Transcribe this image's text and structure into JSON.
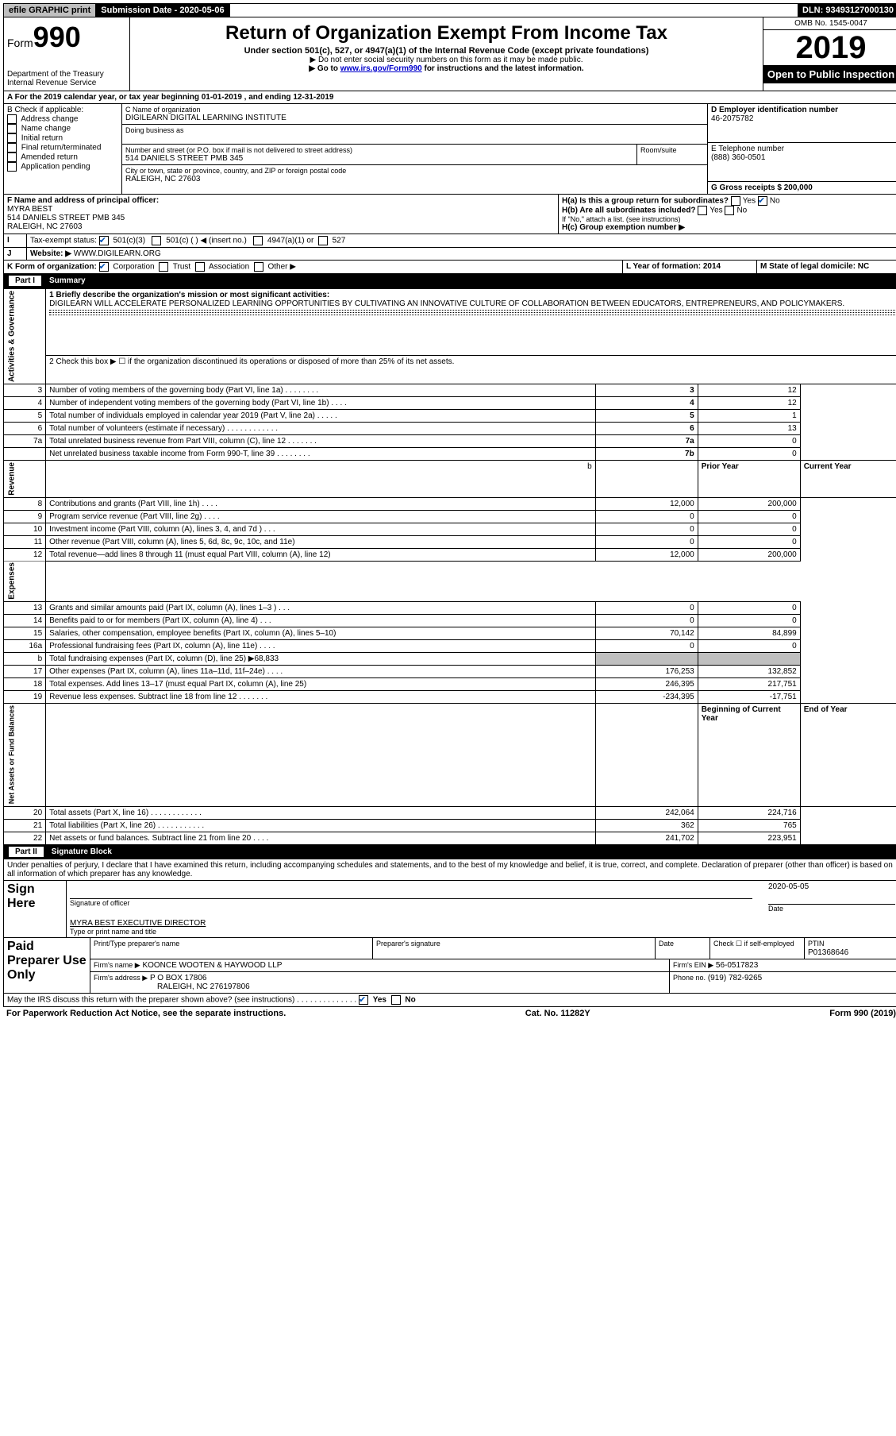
{
  "topbar": {
    "efile": "efile GRAPHIC print",
    "submission_label": "Submission Date - 2020-05-06",
    "dln_label": "DLN: 93493127000130"
  },
  "header": {
    "form_prefix": "Form",
    "form_number": "990",
    "dept": "Department of the Treasury",
    "irs": "Internal Revenue Service",
    "title": "Return of Organization Exempt From Income Tax",
    "subtitle": "Under section 501(c), 527, or 4947(a)(1) of the Internal Revenue Code (except private foundations)",
    "note1": "▶ Do not enter social security numbers on this form as it may be made public.",
    "note2_prefix": "▶ Go to ",
    "note2_link": "www.irs.gov/Form990",
    "note2_suffix": " for instructions and the latest information.",
    "omb": "OMB No. 1545-0047",
    "year": "2019",
    "open_pub": "Open to Public Inspection"
  },
  "period": {
    "line_a": "A For the 2019 calendar year, or tax year beginning 01-01-2019    , and ending 12-31-2019"
  },
  "boxB": {
    "label": "B Check if applicable:",
    "opts": [
      "Address change",
      "Name change",
      "Initial return",
      "Final return/terminated",
      "Amended return",
      "Application pending"
    ]
  },
  "boxC": {
    "name_label": "C Name of organization",
    "name": "DIGILEARN DIGITAL LEARNING INSTITUTE",
    "dba_label": "Doing business as",
    "street_label": "Number and street (or P.O. box if mail is not delivered to street address)",
    "room_label": "Room/suite",
    "street": "514 DANIELS STREET PMB 345",
    "city_label": "City or town, state or province, country, and ZIP or foreign postal code",
    "city": "RALEIGH, NC  27603"
  },
  "boxD": {
    "label": "D Employer identification number",
    "value": "46-2075782"
  },
  "boxE": {
    "label": "E Telephone number",
    "value": "(888) 360-0501"
  },
  "boxG": {
    "label": "G Gross receipts $ 200,000"
  },
  "boxF": {
    "label": "F  Name and address of principal officer:",
    "name": "MYRA BEST",
    "addr1": "514 DANIELS STREET PMB 345",
    "addr2": "RALEIGH, NC  27603"
  },
  "boxH": {
    "ha": "H(a)  Is this a group return for subordinates?",
    "hb": "H(b)  Are all subordinates included?",
    "hb_note": "If \"No,\" attach a list. (see instructions)",
    "hc": "H(c)  Group exemption number ▶",
    "yes": "Yes",
    "no": "No"
  },
  "taxexempt": {
    "label": "Tax-exempt status:",
    "c3": "501(c)(3)",
    "c": "501(c) (  ) ◀ (insert no.)",
    "a1": "4947(a)(1) or",
    "s527": "527"
  },
  "boxJ": {
    "label": "J",
    "text": "Website: ▶",
    "value": "WWW.DIGILEARN.ORG"
  },
  "boxK": {
    "label": "K Form of organization:",
    "opts": [
      "Corporation",
      "Trust",
      "Association",
      "Other ▶"
    ]
  },
  "boxL": {
    "label": "L Year of formation: 2014"
  },
  "boxM": {
    "label": "M State of legal domicile: NC"
  },
  "part1": {
    "title": "Summary",
    "part": "Part I",
    "q1": "1  Briefly describe the organization's mission or most significant activities:",
    "mission": "DIGILEARN WILL ACCELERATE PERSONALIZED LEARNING OPPORTUNITIES BY CULTIVATING AN INNOVATIVE CULTURE OF COLLABORATION BETWEEN EDUCATORS, ENTREPRENEURS, AND POLICYMAKERS.",
    "q2": "2   Check this box ▶ ☐  if the organization discontinued its operations or disposed of more than 25% of its net assets.",
    "gov_rows": [
      {
        "n": "3",
        "t": "Number of voting members of the governing body (Part VI, line 1a)   .   .   .   .   .   .   .   .",
        "rn": "3",
        "v": "12"
      },
      {
        "n": "4",
        "t": "Number of independent voting members of the governing body (Part VI, line 1b)   .   .   .   .",
        "rn": "4",
        "v": "12"
      },
      {
        "n": "5",
        "t": "Total number of individuals employed in calendar year 2019 (Part V, line 2a)   .   .   .   .   .",
        "rn": "5",
        "v": "1"
      },
      {
        "n": "6",
        "t": "Total number of volunteers (estimate if necessary)    .   .   .   .   .   .   .   .   .   .   .   .",
        "rn": "6",
        "v": "13"
      },
      {
        "n": "7a",
        "t": "Total unrelated business revenue from Part VIII, column (C), line 12   .   .   .   .   .   .   .",
        "rn": "7a",
        "v": "0"
      },
      {
        "n": "",
        "t": "Net unrelated business taxable income from Form 990-T, line 39   .   .   .   .   .   .   .   .",
        "rn": "7b",
        "v": "0"
      }
    ],
    "rev_head": {
      "b": "b",
      "py": "Prior Year",
      "cy": "Current Year"
    },
    "rev_rows": [
      {
        "n": "8",
        "t": "Contributions and grants (Part VIII, line 1h)    .   .   .   .",
        "py": "12,000",
        "cy": "200,000"
      },
      {
        "n": "9",
        "t": "Program service revenue (Part VIII, line 2g)    .   .   .   .",
        "py": "0",
        "cy": "0"
      },
      {
        "n": "10",
        "t": "Investment income (Part VIII, column (A), lines 3, 4, and 7d )    .   .   .",
        "py": "0",
        "cy": "0"
      },
      {
        "n": "11",
        "t": "Other revenue (Part VIII, column (A), lines 5, 6d, 8c, 9c, 10c, and 11e)",
        "py": "0",
        "cy": "0"
      },
      {
        "n": "12",
        "t": "Total revenue—add lines 8 through 11 (must equal Part VIII, column (A), line 12)",
        "py": "12,000",
        "cy": "200,000"
      }
    ],
    "exp_rows": [
      {
        "n": "13",
        "t": "Grants and similar amounts paid (Part IX, column (A), lines 1–3 )   .   .   .",
        "py": "0",
        "cy": "0"
      },
      {
        "n": "14",
        "t": "Benefits paid to or for members (Part IX, column (A), line 4)   .   .   .",
        "py": "0",
        "cy": "0"
      },
      {
        "n": "15",
        "t": "Salaries, other compensation, employee benefits (Part IX, column (A), lines 5–10)",
        "py": "70,142",
        "cy": "84,899"
      },
      {
        "n": "16a",
        "t": "Professional fundraising fees (Part IX, column (A), line 11e)    .   .   .   .",
        "py": "0",
        "cy": "0"
      },
      {
        "n": "b",
        "t": "Total fundraising expenses (Part IX, column (D), line 25) ▶68,833",
        "py": "",
        "cy": "",
        "gray": true
      },
      {
        "n": "17",
        "t": "Other expenses (Part IX, column (A), lines 11a–11d, 11f–24e)   .   .   .   .",
        "py": "176,253",
        "cy": "132,852"
      },
      {
        "n": "18",
        "t": "Total expenses. Add lines 13–17 (must equal Part IX, column (A), line 25)",
        "py": "246,395",
        "cy": "217,751"
      },
      {
        "n": "19",
        "t": "Revenue less expenses. Subtract line 18 from line 12  .   .   .   .   .   .   .",
        "py": "-234,395",
        "cy": "-17,751"
      }
    ],
    "na_head": {
      "py": "Beginning of Current Year",
      "cy": "End of Year"
    },
    "na_rows": [
      {
        "n": "20",
        "t": "Total assets (Part X, line 16)  .   .   .   .   .   .   .   .   .   .   .   .",
        "py": "242,064",
        "cy": "224,716"
      },
      {
        "n": "21",
        "t": "Total liabilities (Part X, line 26)   .   .   .   .   .   .   .   .   .   .   .",
        "py": "362",
        "cy": "765"
      },
      {
        "n": "22",
        "t": "Net assets or fund balances. Subtract line 21 from line 20   .   .   .   .",
        "py": "241,702",
        "cy": "223,951"
      }
    ],
    "vlabels": {
      "gov": "Activities & Governance",
      "rev": "Revenue",
      "exp": "Expenses",
      "na": "Net Assets or Fund Balances"
    }
  },
  "part2": {
    "part": "Part II",
    "title": "Signature Block",
    "decl": "Under penalties of perjury, I declare that I have examined this return, including accompanying schedules and statements, and to the best of my knowledge and belief, it is true, correct, and complete. Declaration of preparer (other than officer) is based on all information of which preparer has any knowledge.",
    "sign_here": "Sign Here",
    "sig_officer": "Signature of officer",
    "date": "Date",
    "date_val": "2020-05-05",
    "typed": "MYRA BEST EXECUTIVE DIRECTOR",
    "typed_label": "Type or print name and title",
    "paid": "Paid Preparer Use Only",
    "pp_name": "Print/Type preparer's name",
    "pp_sig": "Preparer's signature",
    "pp_date": "Date",
    "pp_check": "Check ☐ if self-employed",
    "ptin_label": "PTIN",
    "ptin": "P01368646",
    "firm_label": "Firm's name    ▶",
    "firm": "KOONCE WOOTEN & HAYWOOD LLP",
    "ein_label": "Firm's EIN ▶",
    "ein": "56-0517823",
    "addr_label": "Firm's address ▶",
    "addr1": "P O BOX 17806",
    "addr2": "RALEIGH, NC  276197806",
    "phone_label": "Phone no.",
    "phone": "(919) 782-9265",
    "discuss": "May the IRS discuss this return with the preparer shown above? (see instructions)    .   .   .   .   .   .   .   .   .   .   .   .   .   .",
    "yes": "Yes",
    "no": "No"
  },
  "footer": {
    "left": "For Paperwork Reduction Act Notice, see the separate instructions.",
    "mid": "Cat. No. 11282Y",
    "right": "Form 990 (2019)"
  }
}
